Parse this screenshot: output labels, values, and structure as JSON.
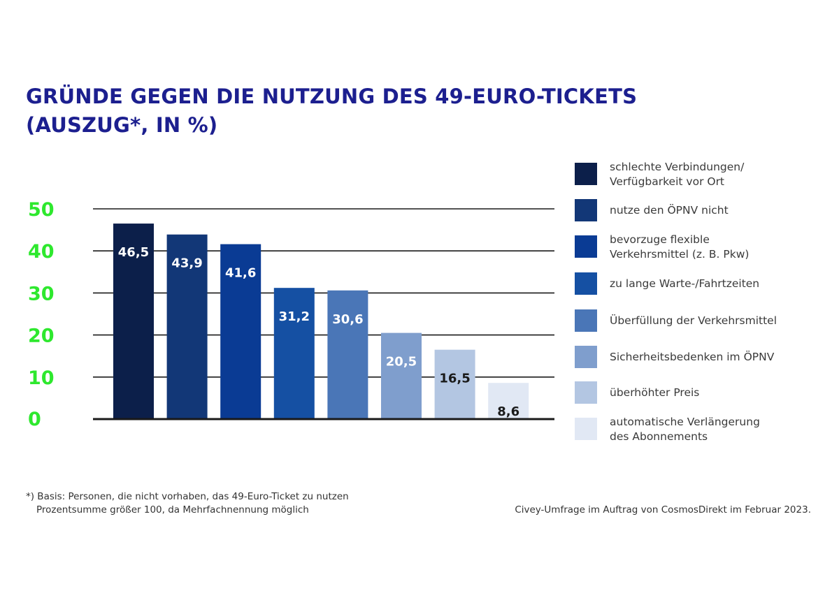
{
  "title": {
    "line1": "GRÜNDE GEGEN DIE NUTZUNG DES 49-EURO-TICKETS",
    "line2": "(AUSZUG*, IN %)"
  },
  "colors": {
    "title": "#1c1f8f",
    "y_ticks": "#2ee82e",
    "gridline": "#1a1a1a",
    "label_dark": "#ffffff",
    "label_light": "#1a1a1a"
  },
  "chart_data": {
    "type": "bar",
    "title": "GRÜNDE GEGEN DIE NUTZUNG DES 49-EURO-TICKETS (AUSZUG*, IN %)",
    "xlabel": "",
    "ylabel": "",
    "ylim": [
      0,
      50
    ],
    "yticks": [
      0,
      10,
      20,
      30,
      40,
      50
    ],
    "grid": true,
    "legend_position": "right",
    "categories": [
      "schlechte Verbindungen/\nVerfügbarkeit vor Ort",
      "nutze den ÖPNV nicht",
      "bevorzuge flexible\nVerkehrsmittel (z. B. Pkw)",
      "zu lange Warte-/Fahrtzeiten",
      "Überfüllung der Verkehrsmittel",
      "Sicherheitsbedenken im ÖPNV",
      "überhöhter Preis",
      "automatische Verlängerung\ndes Abonnements"
    ],
    "values": [
      46.5,
      43.9,
      41.6,
      31.2,
      30.6,
      20.5,
      16.5,
      8.6
    ],
    "value_labels": [
      "46,5",
      "43,9",
      "41,6",
      "31,2",
      "30,6",
      "20,5",
      "16,5",
      "8,6"
    ],
    "colors": [
      "#0c1f4a",
      "#123777",
      "#0a3b94",
      "#1550a3",
      "#4a76b7",
      "#7f9ecd",
      "#b3c6e2",
      "#e1e8f4"
    ]
  },
  "footnote": {
    "line1": "*) Basis: Personen, die nicht vorhaben, das 49-Euro-Ticket zu nutzen",
    "line2": "Prozentsumme größer 100, da Mehrfachnennung möglich"
  },
  "source": "Civey-Umfrage im Auftrag von CosmosDirekt im Februar 2023."
}
